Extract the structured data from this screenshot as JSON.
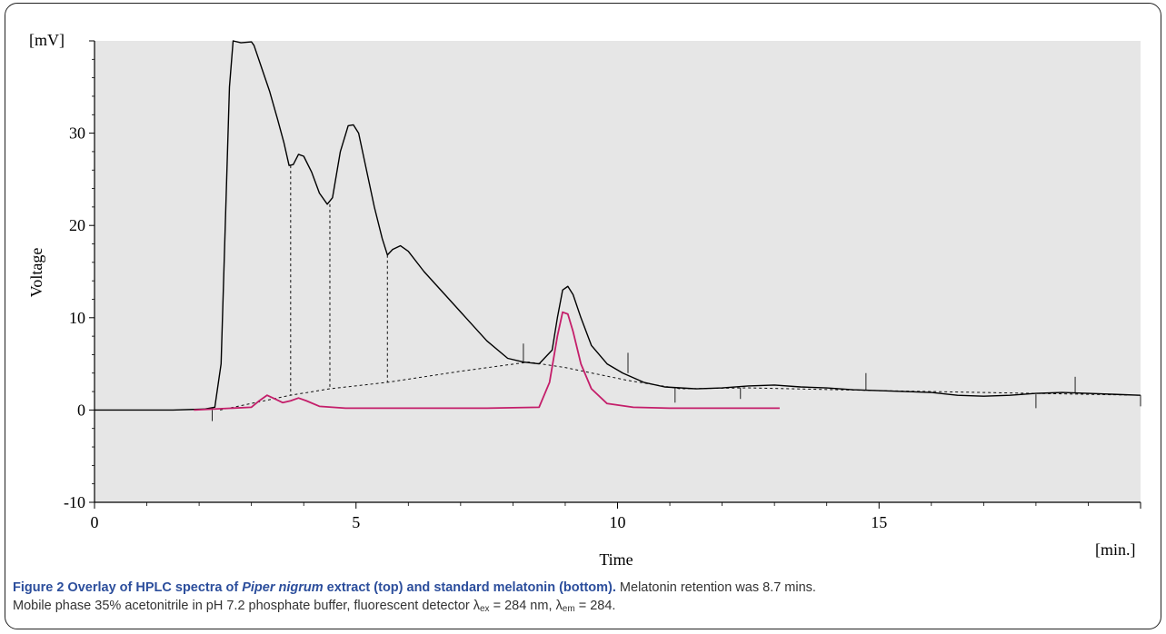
{
  "chart_data": {
    "type": "line",
    "y_unit_label": "[mV]",
    "ylabel": "Voltage",
    "xlabel": "Time",
    "x_unit_label": "[min.]",
    "xlim": [
      0,
      20
    ],
    "ylim": [
      -10,
      40
    ],
    "x_ticks": [
      "0",
      "5",
      "10",
      "15"
    ],
    "y_ticks": [
      "30",
      "20",
      "10",
      "0",
      "-10"
    ],
    "grid": false,
    "background": "#e6e6e6",
    "series": [
      {
        "color": "#000000",
        "points": [
          [
            0,
            0
          ],
          [
            1.5,
            0
          ],
          [
            2.1,
            0.1
          ],
          [
            2.3,
            0.3
          ],
          [
            2.42,
            5
          ],
          [
            2.5,
            20
          ],
          [
            2.58,
            35
          ],
          [
            2.65,
            40
          ],
          [
            2.8,
            39.8
          ],
          [
            3.0,
            39.9
          ],
          [
            3.05,
            39.5
          ],
          [
            3.2,
            37
          ],
          [
            3.35,
            34.5
          ],
          [
            3.5,
            31.5
          ],
          [
            3.62,
            29
          ],
          [
            3.72,
            26.5
          ],
          [
            3.8,
            26.6
          ],
          [
            3.9,
            27.7
          ],
          [
            4.0,
            27.5
          ],
          [
            4.15,
            25.8
          ],
          [
            4.3,
            23.5
          ],
          [
            4.45,
            22.3
          ],
          [
            4.55,
            23
          ],
          [
            4.7,
            28
          ],
          [
            4.85,
            30.8
          ],
          [
            4.95,
            30.9
          ],
          [
            5.05,
            30
          ],
          [
            5.2,
            26
          ],
          [
            5.35,
            22
          ],
          [
            5.5,
            18.6
          ],
          [
            5.6,
            16.8
          ],
          [
            5.7,
            17.4
          ],
          [
            5.85,
            17.8
          ],
          [
            6.0,
            17.2
          ],
          [
            6.3,
            15
          ],
          [
            6.7,
            12.5
          ],
          [
            7.1,
            10
          ],
          [
            7.5,
            7.5
          ],
          [
            7.9,
            5.6
          ],
          [
            8.2,
            5.2
          ],
          [
            8.5,
            5.0
          ],
          [
            8.75,
            6.5
          ],
          [
            8.85,
            10
          ],
          [
            8.95,
            13
          ],
          [
            9.05,
            13.4
          ],
          [
            9.15,
            12.5
          ],
          [
            9.3,
            10
          ],
          [
            9.5,
            7
          ],
          [
            9.8,
            5
          ],
          [
            10.1,
            4
          ],
          [
            10.5,
            3
          ],
          [
            10.9,
            2.5
          ],
          [
            11.5,
            2.3
          ],
          [
            12.0,
            2.4
          ],
          [
            12.5,
            2.6
          ],
          [
            13.0,
            2.7
          ],
          [
            13.5,
            2.5
          ],
          [
            14.0,
            2.4
          ],
          [
            14.5,
            2.2
          ],
          [
            15.0,
            2.1
          ],
          [
            15.5,
            2.0
          ],
          [
            16.0,
            1.9
          ],
          [
            16.5,
            1.6
          ],
          [
            17.0,
            1.5
          ],
          [
            17.5,
            1.6
          ],
          [
            18.0,
            1.8
          ],
          [
            18.5,
            1.9
          ],
          [
            19.0,
            1.8
          ],
          [
            19.5,
            1.7
          ],
          [
            20.0,
            1.6
          ]
        ]
      },
      {
        "color": "#c41e6a",
        "points": [
          [
            1.9,
            0
          ],
          [
            3.0,
            0.3
          ],
          [
            3.15,
            1.0
          ],
          [
            3.3,
            1.6
          ],
          [
            3.45,
            1.2
          ],
          [
            3.6,
            0.8
          ],
          [
            3.75,
            1.0
          ],
          [
            3.9,
            1.3
          ],
          [
            4.05,
            1.0
          ],
          [
            4.3,
            0.4
          ],
          [
            4.8,
            0.2
          ],
          [
            6.0,
            0.2
          ],
          [
            7.5,
            0.2
          ],
          [
            8.5,
            0.3
          ],
          [
            8.7,
            3
          ],
          [
            8.85,
            8
          ],
          [
            8.95,
            10.6
          ],
          [
            9.05,
            10.4
          ],
          [
            9.15,
            8.5
          ],
          [
            9.3,
            5
          ],
          [
            9.5,
            2.3
          ],
          [
            9.8,
            0.7
          ],
          [
            10.3,
            0.3
          ],
          [
            11.0,
            0.2
          ],
          [
            12.0,
            0.2
          ],
          [
            13.1,
            0.2
          ]
        ]
      }
    ],
    "baseline_dashed": [
      [
        2.4,
        0
      ],
      [
        3.75,
        1.6
      ],
      [
        4.5,
        2.3
      ],
      [
        5.6,
        3.0
      ],
      [
        7.0,
        4.2
      ],
      [
        8.3,
        5.2
      ],
      [
        9.0,
        4.6
      ],
      [
        10.2,
        3.2
      ],
      [
        11.2,
        2.3
      ],
      [
        12.5,
        2.4
      ],
      [
        15.0,
        2.1
      ],
      [
        20.0,
        1.6
      ]
    ],
    "drop_lines": [
      [
        3.75,
        26.5,
        1.6
      ],
      [
        4.5,
        22.3,
        2.3
      ],
      [
        5.6,
        16.8,
        3.0
      ]
    ],
    "integration_ticks": [
      [
        2.25,
        0,
        -1.2
      ],
      [
        8.2,
        5.2,
        7.2
      ],
      [
        10.2,
        4.0,
        6.2
      ],
      [
        11.1,
        2.4,
        0.8
      ],
      [
        12.35,
        2.4,
        1.2
      ],
      [
        14.75,
        2.2,
        4.0
      ],
      [
        18.0,
        1.7,
        0.2
      ],
      [
        18.75,
        1.9,
        3.6
      ],
      [
        20.0,
        1.6,
        0.4
      ]
    ]
  },
  "caption": {
    "figure_label": "Figure 2 Overlay of HPLC spectra of ",
    "species": "Piper nigrum",
    "title_mid": " extract (",
    "top": "top",
    "title_end": ") and standard melatonin (bottom).",
    "line1_rest": " Melatonin retention was 8.7 mins.",
    "line2_start": "Mobile phase 35% acetonitrile in pH 7.2 phosphate buffer, fluorescent detector λ",
    "ex_sub": "ex",
    "line2_mid": " = 284 nm, λ",
    "em_sub": "em",
    "line2_end": " = 284."
  }
}
